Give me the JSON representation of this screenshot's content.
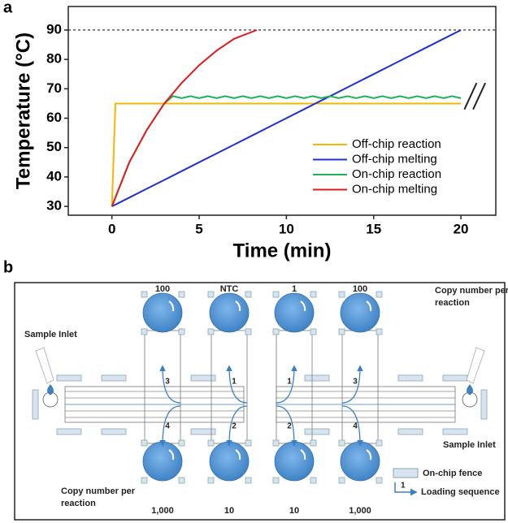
{
  "chart_data": {
    "type": "line",
    "panel_label": "a",
    "x_label": "Time (min)",
    "y_label": "Temperature (°C)",
    "xlim": [
      -2.5,
      22
    ],
    "ylim": [
      27,
      98
    ],
    "xticks": [
      0,
      5,
      10,
      15,
      20
    ],
    "yticks": [
      30,
      40,
      50,
      60,
      70,
      80,
      90
    ],
    "reference_line": 90,
    "legend_position": "center right",
    "series": [
      {
        "name": "Off-chip reaction",
        "color": "#f5b800",
        "x": [
          0,
          0.2,
          20
        ],
        "values": [
          30,
          65,
          65
        ]
      },
      {
        "name": "Off-chip melting",
        "color": "#1f2fd6",
        "x": [
          0,
          1,
          2,
          3,
          4,
          5,
          6,
          7,
          8,
          9,
          10,
          11,
          12,
          13,
          14,
          15,
          16,
          17,
          18,
          19,
          20
        ],
        "values": [
          30,
          33,
          36,
          39,
          42,
          45,
          48,
          51,
          54,
          57,
          60,
          63,
          66,
          69,
          72,
          75,
          78,
          81,
          84,
          87,
          90
        ]
      },
      {
        "name": "On-chip reaction",
        "color": "#1fb05a",
        "x": [
          0,
          1,
          2,
          3,
          3.5,
          4,
          4.5,
          5,
          5.5,
          6,
          6.5,
          7,
          7.5,
          8,
          8.5,
          9,
          9.5,
          10,
          10.5,
          11,
          11.5,
          12,
          12.5,
          13,
          13.5,
          14,
          14.5,
          15,
          15.5,
          16,
          16.5,
          17,
          17.5,
          18,
          18.5,
          19,
          19.5,
          20
        ],
        "values": [
          30,
          45,
          56,
          65,
          67.5,
          66.8,
          67.5,
          66.8,
          67.5,
          66.8,
          67.5,
          66.8,
          67.5,
          66.8,
          67.5,
          66.8,
          67.5,
          66.8,
          67.5,
          66.8,
          67.5,
          66.8,
          67.5,
          66.8,
          67.5,
          66.8,
          67.5,
          66.8,
          67.5,
          66.8,
          67.5,
          66.8,
          67.5,
          66.8,
          67.5,
          66.8,
          67.5,
          66.8
        ]
      },
      {
        "name": "On-chip melting",
        "color": "#e01b1b",
        "x": [
          0,
          1,
          2,
          3,
          4,
          5,
          6,
          7,
          8.3
        ],
        "values": [
          30,
          45,
          56,
          65,
          72,
          78,
          83,
          87,
          90
        ]
      }
    ]
  },
  "diagram": {
    "panel_label": "b",
    "top_labels": [
      "100",
      "NTC",
      "1",
      "100"
    ],
    "bottom_labels": [
      "1,000",
      "10",
      "10",
      "1,000"
    ],
    "top_sequence": [
      "3",
      "1",
      "1",
      "3"
    ],
    "bottom_sequence": [
      "4",
      "2",
      "2",
      "4"
    ],
    "left_inlet": "Sample Inlet",
    "right_inlet": "Sample Inlet",
    "copy_number_top": [
      "Copy number per",
      "reaction"
    ],
    "copy_number_bottom": [
      "Copy number per",
      "reaction"
    ],
    "legend": {
      "fence": "On-chip fence",
      "sequence_number": "1",
      "sequence": "Loading sequence"
    }
  }
}
